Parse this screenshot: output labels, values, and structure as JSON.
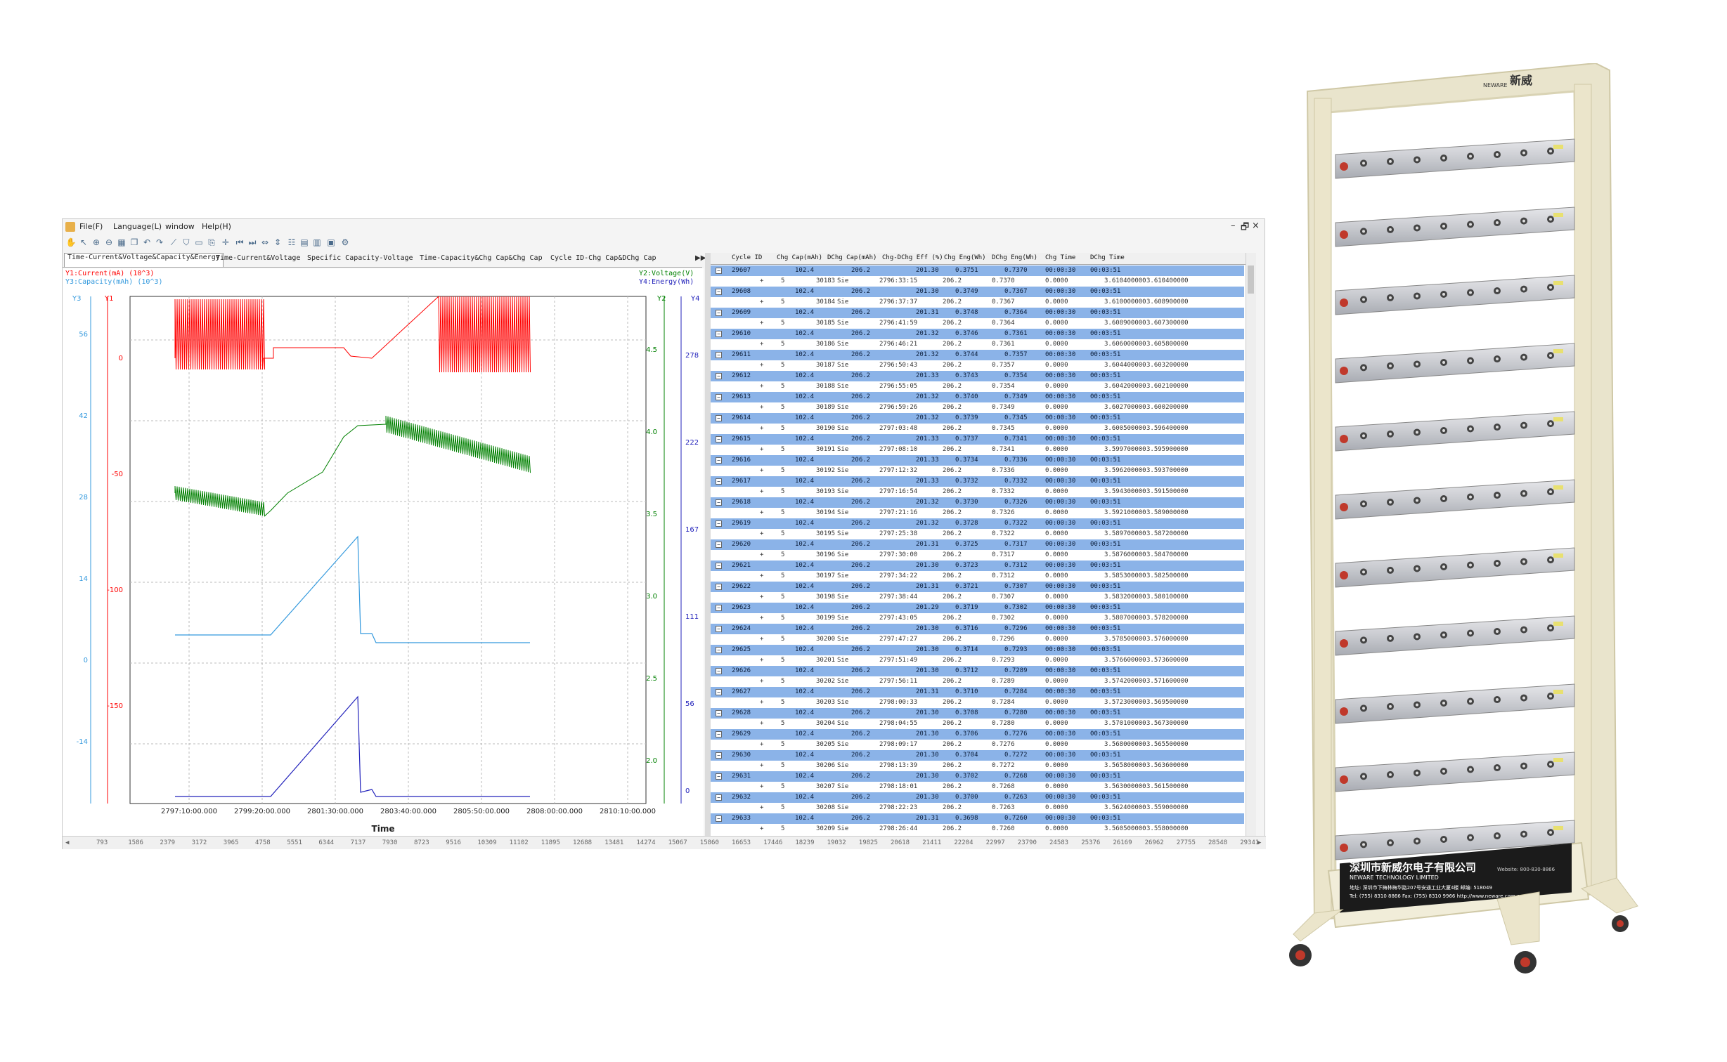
{
  "menu": {
    "items": [
      "File(F)",
      "Language(L)",
      "window",
      "Help(H)"
    ]
  },
  "window_controls": [
    "–",
    "🗗",
    "×"
  ],
  "tabs": [
    "Time-Current&Voltage&Capacity&Energy",
    "Time-Current&Voltage",
    "Specific Capacity-Voltage",
    "Time-Capacity&Chg Cap&Chg Cap",
    "Cycle ID-Chg Cap&DChg Cap"
  ],
  "chart": {
    "legend_left_1": "Y1:Current(mA) (10^3)",
    "legend_left_2": "Y3:Capacity(mAh) (10^3)",
    "legend_right_1": "Y2:Voltage(V)",
    "legend_right_2": "Y4:Energy(Wh)",
    "axis_y3": "Y3",
    "axis_y1": "Y1",
    "axis_y2": "Y2",
    "axis_y4": "Y4",
    "xlabel": "Time",
    "colors": {
      "current": "#ff0000",
      "voltage": "#008000",
      "capacity": "#3399dd",
      "energy": "#2222bb"
    }
  },
  "chart_data": {
    "type": "line",
    "xlabel": "Time",
    "x_ticks": [
      "2797:10:00.000",
      "2799:20:00.000",
      "2801:30:00.000",
      "2803:40:00.000",
      "2805:50:00.000",
      "2808:00:00.000",
      "2810:10:00.000"
    ],
    "y3_ticks": [
      "56",
      "42",
      "28",
      "14",
      "0",
      "-14"
    ],
    "y1_ticks": [
      "0",
      "-50",
      "-100",
      "-150"
    ],
    "y2_ticks": [
      "4.5",
      "4.0",
      "3.5",
      "3.0",
      "2.5",
      "2.0"
    ],
    "y4_ticks": [
      "278",
      "222",
      "167",
      "111",
      "56",
      "0"
    ],
    "series": [
      {
        "name": "Y1:Current(mA) (10^3)",
        "axis": "Y1"
      },
      {
        "name": "Y2:Voltage(V)",
        "axis": "Y2"
      },
      {
        "name": "Y3:Capacity(mAh) (10^3)",
        "axis": "Y3"
      },
      {
        "name": "Y4:Energy(Wh)",
        "axis": "Y4"
      }
    ],
    "grid": true
  },
  "table": {
    "headers": [
      "Cycle ID",
      "Chg Cap(mAh)",
      "DChg Cap(mAh)",
      "Chg-DChg Eff (%)",
      "Chg Eng(Wh)",
      "DChg Eng(Wh)",
      "Chg Time",
      "DChg Time"
    ],
    "cycles": [
      {
        "id": "29607",
        "chg": "102.4",
        "dchg": "206.2",
        "eff": "201.30",
        "ce": "0.3751",
        "de": "0.7370",
        "ct": "00:00:30",
        "dt": "00:03:51",
        "sub": {
          "n": "30183",
          "t": "2796:33:15",
          "e": "0.7370",
          "v": "3.610400000",
          "w": "3.610400000"
        }
      },
      {
        "id": "29608",
        "chg": "102.4",
        "dchg": "206.2",
        "eff": "201.30",
        "ce": "0.3749",
        "de": "0.7367",
        "ct": "00:00:30",
        "dt": "00:03:51",
        "sub": {
          "n": "30184",
          "t": "2796:37:37",
          "e": "0.7367",
          "v": "3.610000000",
          "w": "3.608900000"
        }
      },
      {
        "id": "29609",
        "chg": "102.4",
        "dchg": "206.2",
        "eff": "201.31",
        "ce": "0.3748",
        "de": "0.7364",
        "ct": "00:00:30",
        "dt": "00:03:51",
        "sub": {
          "n": "30185",
          "t": "2796:41:59",
          "e": "0.7364",
          "v": "3.608900000",
          "w": "3.607300000"
        }
      },
      {
        "id": "29610",
        "chg": "102.4",
        "dchg": "206.2",
        "eff": "201.32",
        "ce": "0.3746",
        "de": "0.7361",
        "ct": "00:00:30",
        "dt": "00:03:51",
        "sub": {
          "n": "30186",
          "t": "2796:46:21",
          "e": "0.7361",
          "v": "3.606000000",
          "w": "3.605800000"
        }
      },
      {
        "id": "29611",
        "chg": "102.4",
        "dchg": "206.2",
        "eff": "201.32",
        "ce": "0.3744",
        "de": "0.7357",
        "ct": "00:00:30",
        "dt": "00:03:51",
        "sub": {
          "n": "30187",
          "t": "2796:50:43",
          "e": "0.7357",
          "v": "3.604400000",
          "w": "3.603200000"
        }
      },
      {
        "id": "29612",
        "chg": "102.4",
        "dchg": "206.2",
        "eff": "201.33",
        "ce": "0.3743",
        "de": "0.7354",
        "ct": "00:00:30",
        "dt": "00:03:51",
        "sub": {
          "n": "30188",
          "t": "2796:55:05",
          "e": "0.7354",
          "v": "3.604200000",
          "w": "3.602100000"
        }
      },
      {
        "id": "29613",
        "chg": "102.4",
        "dchg": "206.2",
        "eff": "201.32",
        "ce": "0.3740",
        "de": "0.7349",
        "ct": "00:00:30",
        "dt": "00:03:51",
        "sub": {
          "n": "30189",
          "t": "2796:59:26",
          "e": "0.7349",
          "v": "3.602700000",
          "w": "3.600200000"
        }
      },
      {
        "id": "29614",
        "chg": "102.4",
        "dchg": "206.2",
        "eff": "201.32",
        "ce": "0.3739",
        "de": "0.7345",
        "ct": "00:00:30",
        "dt": "00:03:51",
        "sub": {
          "n": "30190",
          "t": "2797:03:48",
          "e": "0.7345",
          "v": "3.600500000",
          "w": "3.596400000"
        }
      },
      {
        "id": "29615",
        "chg": "102.4",
        "dchg": "206.2",
        "eff": "201.33",
        "ce": "0.3737",
        "de": "0.7341",
        "ct": "00:00:30",
        "dt": "00:03:51",
        "sub": {
          "n": "30191",
          "t": "2797:08:10",
          "e": "0.7341",
          "v": "3.599700000",
          "w": "3.595900000"
        }
      },
      {
        "id": "29616",
        "chg": "102.4",
        "dchg": "206.2",
        "eff": "201.33",
        "ce": "0.3734",
        "de": "0.7336",
        "ct": "00:00:30",
        "dt": "00:03:51",
        "sub": {
          "n": "30192",
          "t": "2797:12:32",
          "e": "0.7336",
          "v": "3.596200000",
          "w": "3.593700000"
        }
      },
      {
        "id": "29617",
        "chg": "102.4",
        "dchg": "206.2",
        "eff": "201.33",
        "ce": "0.3732",
        "de": "0.7332",
        "ct": "00:00:30",
        "dt": "00:03:51",
        "sub": {
          "n": "30193",
          "t": "2797:16:54",
          "e": "0.7332",
          "v": "3.594300000",
          "w": "3.591500000"
        }
      },
      {
        "id": "29618",
        "chg": "102.4",
        "dchg": "206.2",
        "eff": "201.32",
        "ce": "0.3730",
        "de": "0.7326",
        "ct": "00:00:30",
        "dt": "00:03:51",
        "sub": {
          "n": "30194",
          "t": "2797:21:16",
          "e": "0.7326",
          "v": "3.592100000",
          "w": "3.589000000"
        }
      },
      {
        "id": "29619",
        "chg": "102.4",
        "dchg": "206.2",
        "eff": "201.32",
        "ce": "0.3728",
        "de": "0.7322",
        "ct": "00:00:30",
        "dt": "00:03:51",
        "sub": {
          "n": "30195",
          "t": "2797:25:38",
          "e": "0.7322",
          "v": "3.589700000",
          "w": "3.587200000"
        }
      },
      {
        "id": "29620",
        "chg": "102.4",
        "dchg": "206.2",
        "eff": "201.31",
        "ce": "0.3725",
        "de": "0.7317",
        "ct": "00:00:30",
        "dt": "00:03:51",
        "sub": {
          "n": "30196",
          "t": "2797:30:00",
          "e": "0.7317",
          "v": "3.587600000",
          "w": "3.584700000"
        }
      },
      {
        "id": "29621",
        "chg": "102.4",
        "dchg": "206.2",
        "eff": "201.30",
        "ce": "0.3723",
        "de": "0.7312",
        "ct": "00:00:30",
        "dt": "00:03:51",
        "sub": {
          "n": "30197",
          "t": "2797:34:22",
          "e": "0.7312",
          "v": "3.585300000",
          "w": "3.582500000"
        }
      },
      {
        "id": "29622",
        "chg": "102.4",
        "dchg": "206.2",
        "eff": "201.31",
        "ce": "0.3721",
        "de": "0.7307",
        "ct": "00:00:30",
        "dt": "00:03:51",
        "sub": {
          "n": "30198",
          "t": "2797:38:44",
          "e": "0.7307",
          "v": "3.583200000",
          "w": "3.580100000"
        }
      },
      {
        "id": "29623",
        "chg": "102.4",
        "dchg": "206.2",
        "eff": "201.29",
        "ce": "0.3719",
        "de": "0.7302",
        "ct": "00:00:30",
        "dt": "00:03:51",
        "sub": {
          "n": "30199",
          "t": "2797:43:05",
          "e": "0.7302",
          "v": "3.580700000",
          "w": "3.578200000"
        }
      },
      {
        "id": "29624",
        "chg": "102.4",
        "dchg": "206.2",
        "eff": "201.30",
        "ce": "0.3716",
        "de": "0.7296",
        "ct": "00:00:30",
        "dt": "00:03:51",
        "sub": {
          "n": "30200",
          "t": "2797:47:27",
          "e": "0.7296",
          "v": "3.578500000",
          "w": "3.576000000"
        }
      },
      {
        "id": "29625",
        "chg": "102.4",
        "dchg": "206.2",
        "eff": "201.30",
        "ce": "0.3714",
        "de": "0.7293",
        "ct": "00:00:30",
        "dt": "00:03:51",
        "sub": {
          "n": "30201",
          "t": "2797:51:49",
          "e": "0.7293",
          "v": "3.576600000",
          "w": "3.573600000"
        }
      },
      {
        "id": "29626",
        "chg": "102.4",
        "dchg": "206.2",
        "eff": "201.30",
        "ce": "0.3712",
        "de": "0.7289",
        "ct": "00:00:30",
        "dt": "00:03:51",
        "sub": {
          "n": "30202",
          "t": "2797:56:11",
          "e": "0.7289",
          "v": "3.574200000",
          "w": "3.571600000"
        }
      },
      {
        "id": "29627",
        "chg": "102.4",
        "dchg": "206.2",
        "eff": "201.31",
        "ce": "0.3710",
        "de": "0.7284",
        "ct": "00:00:30",
        "dt": "00:03:51",
        "sub": {
          "n": "30203",
          "t": "2798:00:33",
          "e": "0.7284",
          "v": "3.572300000",
          "w": "3.569500000"
        }
      },
      {
        "id": "29628",
        "chg": "102.4",
        "dchg": "206.2",
        "eff": "201.30",
        "ce": "0.3708",
        "de": "0.7280",
        "ct": "00:00:30",
        "dt": "00:03:51",
        "sub": {
          "n": "30204",
          "t": "2798:04:55",
          "e": "0.7280",
          "v": "3.570100000",
          "w": "3.567300000"
        }
      },
      {
        "id": "29629",
        "chg": "102.4",
        "dchg": "206.2",
        "eff": "201.30",
        "ce": "0.3706",
        "de": "0.7276",
        "ct": "00:00:30",
        "dt": "00:03:51",
        "sub": {
          "n": "30205",
          "t": "2798:09:17",
          "e": "0.7276",
          "v": "3.568000000",
          "w": "3.565500000"
        }
      },
      {
        "id": "29630",
        "chg": "102.4",
        "dchg": "206.2",
        "eff": "201.30",
        "ce": "0.3704",
        "de": "0.7272",
        "ct": "00:00:30",
        "dt": "00:03:51",
        "sub": {
          "n": "30206",
          "t": "2798:13:39",
          "e": "0.7272",
          "v": "3.565800000",
          "w": "3.563600000"
        }
      },
      {
        "id": "29631",
        "chg": "102.4",
        "dchg": "206.2",
        "eff": "201.30",
        "ce": "0.3702",
        "de": "0.7268",
        "ct": "00:00:30",
        "dt": "00:03:51",
        "sub": {
          "n": "30207",
          "t": "2798:18:01",
          "e": "0.7268",
          "v": "3.563000000",
          "w": "3.561500000"
        }
      },
      {
        "id": "29632",
        "chg": "102.4",
        "dchg": "206.2",
        "eff": "201.30",
        "ce": "0.3700",
        "de": "0.7263",
        "ct": "00:00:30",
        "dt": "00:03:51",
        "sub": {
          "n": "30208",
          "t": "2798:22:23",
          "e": "0.7263",
          "v": "3.562400000",
          "w": "3.559000000"
        }
      },
      {
        "id": "29633",
        "chg": "102.4",
        "dchg": "206.2",
        "eff": "201.31",
        "ce": "0.3698",
        "de": "0.7260",
        "ct": "00:00:30",
        "dt": "00:03:51",
        "sub": {
          "n": "30209",
          "t": "2798:26:44",
          "e": "0.7260",
          "v": "3.560500000",
          "w": "3.558000000"
        }
      }
    ],
    "sub_fixed": {
      "step": "5",
      "mode": "Sie",
      "cap": "206.2",
      "zero": "0.0000"
    }
  },
  "hscroll_labels": [
    "793",
    "1586",
    "2379",
    "3172",
    "3965",
    "4758",
    "5551",
    "6344",
    "7137",
    "7930",
    "8723",
    "9516",
    "10309",
    "11102",
    "11895",
    "12688",
    "13481",
    "14274",
    "15067",
    "15860",
    "16653",
    "17446",
    "18239",
    "19032",
    "19825",
    "20618",
    "21411",
    "22204",
    "22997",
    "23790",
    "24583",
    "25376",
    "26169",
    "26962",
    "27755",
    "28548",
    "29341"
  ],
  "rack": {
    "brand": "新威",
    "brand_en": "NEWARE",
    "company_cn": "深圳市新威尔电子有限公司",
    "company_en": "NEWARE TECHNOLOGY LIMITED",
    "website_line": "Website: 800-830-8866",
    "address_line": "地址: 深圳市下梅林梅华路207号安通工业大厦4楼  邮编: 518049",
    "contact_line": "Tel: (755) 8310 8866  Fax: (755) 8310 9966  http://www.neware.com.cn"
  }
}
